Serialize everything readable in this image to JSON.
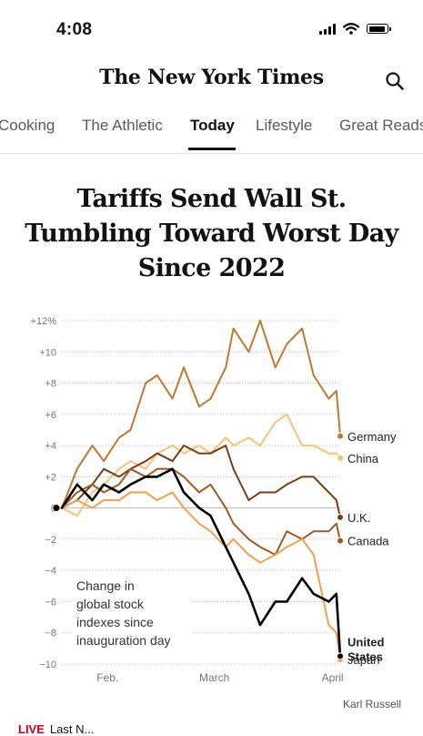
{
  "status_bar": {
    "time": "4:08"
  },
  "masthead": {
    "logo": "The New York Times",
    "search_icon": "search-icon"
  },
  "nav": {
    "tabs": [
      {
        "label": "Cooking"
      },
      {
        "label": "The Athletic"
      },
      {
        "label": "Today",
        "active": true
      },
      {
        "label": "Lifestyle"
      },
      {
        "label": "Great Reads"
      }
    ]
  },
  "article": {
    "headline_lines": [
      "Tariffs Send Wall St.",
      "Tumbling Toward Worst Day",
      "Since 2022"
    ],
    "credit": "Karl Russell",
    "live": {
      "label": "LIVE",
      "text": "Last N..."
    }
  },
  "chart_data": {
    "type": "line",
    "annotation": [
      "Change in",
      "global stock",
      "indexes since",
      "inauguration day"
    ],
    "ylim": [
      -10,
      12
    ],
    "y_ticks": [
      {
        "value": 12,
        "label": "+12%"
      },
      {
        "value": 10,
        "label": "+10"
      },
      {
        "value": 8,
        "label": "+8"
      },
      {
        "value": 6,
        "label": "+6"
      },
      {
        "value": 4,
        "label": "+4"
      },
      {
        "value": 2,
        "label": "+2"
      },
      {
        "value": 0,
        "label": "0"
      },
      {
        "value": -2,
        "label": "−2"
      },
      {
        "value": -4,
        "label": "−4"
      },
      {
        "value": -6,
        "label": "−6"
      },
      {
        "value": -8,
        "label": "−8"
      },
      {
        "value": -10,
        "label": "−10"
      }
    ],
    "x_ticks": [
      {
        "date": "2025-02-01",
        "label": "Feb."
      },
      {
        "date": "2025-03-01",
        "label": "March"
      },
      {
        "date": "2025-04-01",
        "label": "April"
      }
    ],
    "x_range": [
      "2025-01-20",
      "2025-04-03"
    ],
    "grid": true,
    "series": [
      {
        "name": "Germany",
        "color": "#c0782c",
        "dates": [
          "2025-01-20",
          "2025-01-24",
          "2025-01-28",
          "2025-01-31",
          "2025-02-04",
          "2025-02-07",
          "2025-02-11",
          "2025-02-14",
          "2025-02-18",
          "2025-02-21",
          "2025-02-25",
          "2025-02-28",
          "2025-03-04",
          "2025-03-06",
          "2025-03-10",
          "2025-03-13",
          "2025-03-17",
          "2025-03-20",
          "2025-03-24",
          "2025-03-27",
          "2025-03-31",
          "2025-04-02",
          "2025-04-03"
        ],
        "values": [
          0,
          2.5,
          4,
          3,
          4.5,
          5,
          8,
          8.5,
          7,
          9,
          6.5,
          7,
          9,
          11.5,
          10,
          12,
          9,
          10.5,
          11.5,
          8.5,
          7,
          7.5,
          4.6
        ]
      },
      {
        "name": "China",
        "color": "#f4c37a",
        "dates": [
          "2025-01-20",
          "2025-01-24",
          "2025-01-28",
          "2025-01-31",
          "2025-02-04",
          "2025-02-07",
          "2025-02-11",
          "2025-02-14",
          "2025-02-18",
          "2025-02-21",
          "2025-02-25",
          "2025-02-28",
          "2025-03-04",
          "2025-03-06",
          "2025-03-10",
          "2025-03-13",
          "2025-03-17",
          "2025-03-20",
          "2025-03-24",
          "2025-03-27",
          "2025-03-31",
          "2025-04-02",
          "2025-04-03"
        ],
        "values": [
          0,
          -0.5,
          1,
          1.5,
          2.5,
          3,
          2.5,
          3.5,
          4,
          3.5,
          4,
          3.5,
          4.5,
          4,
          4.5,
          4,
          5.5,
          6,
          4,
          4,
          3.5,
          3.5,
          3.2
        ]
      },
      {
        "name": "U.K.",
        "color": "#7a3e14",
        "dates": [
          "2025-01-20",
          "2025-01-24",
          "2025-01-28",
          "2025-01-31",
          "2025-02-04",
          "2025-02-07",
          "2025-02-11",
          "2025-02-14",
          "2025-02-18",
          "2025-02-21",
          "2025-02-25",
          "2025-02-28",
          "2025-03-04",
          "2025-03-06",
          "2025-03-10",
          "2025-03-13",
          "2025-03-17",
          "2025-03-20",
          "2025-03-24",
          "2025-03-27",
          "2025-03-31",
          "2025-04-02",
          "2025-04-03"
        ],
        "values": [
          0,
          0.5,
          1.5,
          2.5,
          2,
          2.5,
          3,
          3.5,
          3,
          4,
          3.5,
          3.5,
          4,
          2.5,
          0.5,
          1,
          1,
          1.5,
          2,
          2,
          1,
          0.5,
          -0.6
        ]
      },
      {
        "name": "Canada",
        "color": "#a35a1e",
        "dates": [
          "2025-01-20",
          "2025-01-24",
          "2025-01-28",
          "2025-01-31",
          "2025-02-04",
          "2025-02-07",
          "2025-02-11",
          "2025-02-14",
          "2025-02-18",
          "2025-02-21",
          "2025-02-25",
          "2025-02-28",
          "2025-03-04",
          "2025-03-06",
          "2025-03-10",
          "2025-03-13",
          "2025-03-17",
          "2025-03-20",
          "2025-03-24",
          "2025-03-27",
          "2025-03-31",
          "2025-04-02",
          "2025-04-03"
        ],
        "values": [
          0,
          1,
          1.5,
          1,
          1.5,
          2.5,
          2,
          2.5,
          2.5,
          2,
          1,
          1.5,
          0,
          -1,
          -2,
          -2.5,
          -3,
          -1.5,
          -2,
          -1.5,
          -1.5,
          -1,
          -2.1
        ]
      },
      {
        "name": "United States",
        "color": "#000000",
        "dates": [
          "2025-01-20",
          "2025-01-24",
          "2025-01-28",
          "2025-01-31",
          "2025-02-04",
          "2025-02-07",
          "2025-02-11",
          "2025-02-14",
          "2025-02-18",
          "2025-02-21",
          "2025-02-25",
          "2025-02-28",
          "2025-03-04",
          "2025-03-06",
          "2025-03-10",
          "2025-03-13",
          "2025-03-17",
          "2025-03-20",
          "2025-03-24",
          "2025-03-27",
          "2025-03-31",
          "2025-04-02",
          "2025-04-03"
        ],
        "values": [
          0,
          1.5,
          0.5,
          1.5,
          1,
          1.5,
          2,
          2,
          2.5,
          1,
          0,
          -0.5,
          -2.5,
          -3.5,
          -5.5,
          -7.5,
          -6,
          -6,
          -4.5,
          -5.5,
          -6,
          -5.5,
          -9.5
        ]
      },
      {
        "name": "Japan",
        "color": "#f0a050",
        "dates": [
          "2025-01-20",
          "2025-01-24",
          "2025-01-28",
          "2025-01-31",
          "2025-02-04",
          "2025-02-07",
          "2025-02-11",
          "2025-02-14",
          "2025-02-18",
          "2025-02-21",
          "2025-02-25",
          "2025-02-28",
          "2025-03-04",
          "2025-03-06",
          "2025-03-10",
          "2025-03-13",
          "2025-03-17",
          "2025-03-20",
          "2025-03-24",
          "2025-03-27",
          "2025-03-31",
          "2025-04-02",
          "2025-04-03"
        ],
        "values": [
          0,
          0.5,
          0,
          0.5,
          0.5,
          1,
          1,
          0.5,
          1,
          0,
          -1,
          -1.5,
          -2.5,
          -2,
          -3,
          -3.5,
          -3,
          -2.5,
          -2,
          -3,
          -7.5,
          -8,
          -9.7
        ]
      }
    ],
    "end_labels": [
      {
        "series": "Germany",
        "lines": [
          "Germany"
        ]
      },
      {
        "series": "China",
        "lines": [
          "China"
        ]
      },
      {
        "series": "U.K.",
        "lines": [
          "U.K."
        ]
      },
      {
        "series": "Canada",
        "lines": [
          "Canada"
        ]
      },
      {
        "series": "United States",
        "lines": [
          "United",
          "States"
        ],
        "bold": true
      },
      {
        "series": "Japan",
        "lines": [
          "Japan"
        ]
      }
    ]
  }
}
